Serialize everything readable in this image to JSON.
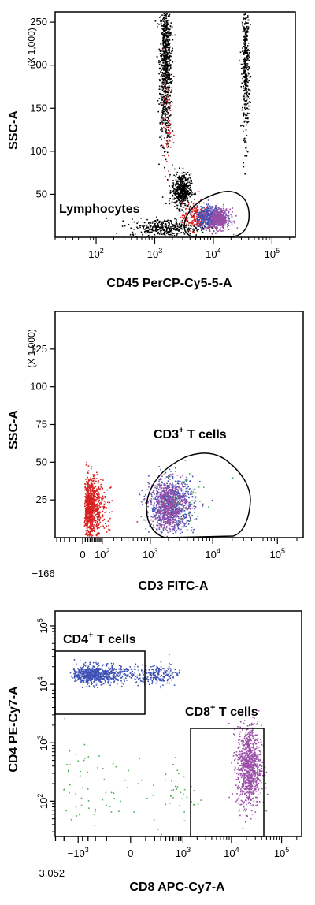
{
  "chart_data": [
    {
      "type": "scatter",
      "title": "",
      "xlabel": "CD45 PerCP-Cy5-5-A",
      "ylabel": "SSC-A",
      "y_scale_note": "(X 1,000)",
      "x_scale": "log",
      "x_ticks": [
        {
          "label_base": "10",
          "label_exp": "2",
          "value": 100
        },
        {
          "label_base": "10",
          "label_exp": "3",
          "value": 1000
        },
        {
          "label_base": "10",
          "label_exp": "4",
          "value": 10000
        },
        {
          "label_base": "10",
          "label_exp": "5",
          "value": 100000
        }
      ],
      "y_ticks": [
        "50",
        "100",
        "150",
        "200",
        "250"
      ],
      "xlim": [
        20,
        250000
      ],
      "ylim": [
        0,
        262
      ],
      "gates": [
        {
          "name": "Lymphocytes"
        }
      ],
      "populations": [
        {
          "color": "#000000",
          "center": [
            1500,
            200
          ],
          "spread": [
            0.05,
            45
          ],
          "count": 900
        },
        {
          "color": "#000000",
          "center": [
            35000,
            200
          ],
          "spread": [
            0.03,
            40
          ],
          "count": 400
        },
        {
          "color": "#000000",
          "center": [
            2800,
            55
          ],
          "spread": [
            0.08,
            10
          ],
          "count": 450
        },
        {
          "color": "#000000",
          "center": [
            1500,
            12
          ],
          "spread": [
            0.3,
            5
          ],
          "count": 350
        },
        {
          "color": "#d92020",
          "center": [
            1600,
            130
          ],
          "spread": [
            0.04,
            25
          ],
          "count": 60
        },
        {
          "color": "#d92020",
          "center": [
            5000,
            25
          ],
          "spread": [
            0.12,
            8
          ],
          "count": 220
        },
        {
          "color": "#3c50b4",
          "center": [
            9000,
            24
          ],
          "spread": [
            0.12,
            6
          ],
          "count": 500
        },
        {
          "color": "#9b4fa8",
          "center": [
            12000,
            22
          ],
          "spread": [
            0.1,
            6
          ],
          "count": 380
        }
      ]
    },
    {
      "type": "scatter",
      "title": "",
      "xlabel": "CD3 FITC-A",
      "ylabel": "SSC-A",
      "y_scale_note": "(X 1,000)",
      "x_scale": "biexponential",
      "x_min_label": "−166",
      "x_ticks": [
        {
          "label_base": "0",
          "label_exp": "",
          "value": 0
        },
        {
          "label_base": "10",
          "label_exp": "2",
          "value": 100
        },
        {
          "label_base": "10",
          "label_exp": "3",
          "value": 1000
        },
        {
          "label_base": "10",
          "label_exp": "4",
          "value": 10000
        },
        {
          "label_base": "10",
          "label_exp": "5",
          "value": 100000
        }
      ],
      "y_ticks": [
        "25",
        "50",
        "75",
        "100",
        "125"
      ],
      "ylim": [
        0,
        150
      ],
      "gates": [
        {
          "name": "CD3",
          "sup": "+",
          "suffix": " T cells"
        }
      ],
      "populations": [
        {
          "color": "#d92020",
          "center": [
            30,
            20
          ],
          "spread": [
            0.3,
            10
          ],
          "count": 900
        },
        {
          "color": "#3c50b4",
          "center": [
            2200,
            22
          ],
          "spread": [
            0.18,
            9
          ],
          "count": 700
        },
        {
          "color": "#9b4fa8",
          "center": [
            2000,
            22
          ],
          "spread": [
            0.15,
            8
          ],
          "count": 600
        },
        {
          "color": "#4caf50",
          "center": [
            3000,
            28
          ],
          "spread": [
            0.25,
            10
          ],
          "count": 40
        }
      ]
    },
    {
      "type": "scatter",
      "title": "",
      "xlabel": "CD8 APC-Cy7-A",
      "ylabel": "CD4 PE-Cy7-A",
      "x_scale": "biexponential",
      "y_scale": "log",
      "x_min_label": "−3,052",
      "x_ticks": [
        {
          "label_base": "−10",
          "label_exp": "3",
          "value": -1000
        },
        {
          "label_base": "0",
          "label_exp": "",
          "value": 0
        },
        {
          "label_base": "10",
          "label_exp": "3",
          "value": 1000
        },
        {
          "label_base": "10",
          "label_exp": "4",
          "value": 10000
        },
        {
          "label_base": "10",
          "label_exp": "5",
          "value": 100000
        }
      ],
      "y_ticks": [
        {
          "label_base": "10",
          "label_exp": "2",
          "value": 100
        },
        {
          "label_base": "10",
          "label_exp": "3",
          "value": 1000
        },
        {
          "label_base": "10",
          "label_exp": "4",
          "value": 10000
        },
        {
          "label_base": "10",
          "label_exp": "5",
          "value": 100000
        }
      ],
      "gates": [
        {
          "name": "CD4",
          "sup": "+",
          "suffix": " T cells"
        },
        {
          "name": "CD8",
          "sup": "+",
          "suffix": " T cells"
        }
      ],
      "populations": [
        {
          "color": "#3c50b4",
          "center": [
            -300,
            15000
          ],
          "spread": [
            400,
            0.08
          ],
          "count": 900
        },
        {
          "color": "#9b4fa8",
          "center": [
            22000,
            400
          ],
          "spread": [
            0.12,
            0.35
          ],
          "count": 900
        },
        {
          "color": "#4caf50",
          "center": [
            -200,
            150
          ],
          "spread": [
            900,
            0.35
          ],
          "count": 100
        },
        {
          "color": "#4caf50",
          "center": [
            4000,
            20
          ],
          "spread": [
            0.6,
            0.02
          ],
          "count": 80
        }
      ]
    }
  ]
}
